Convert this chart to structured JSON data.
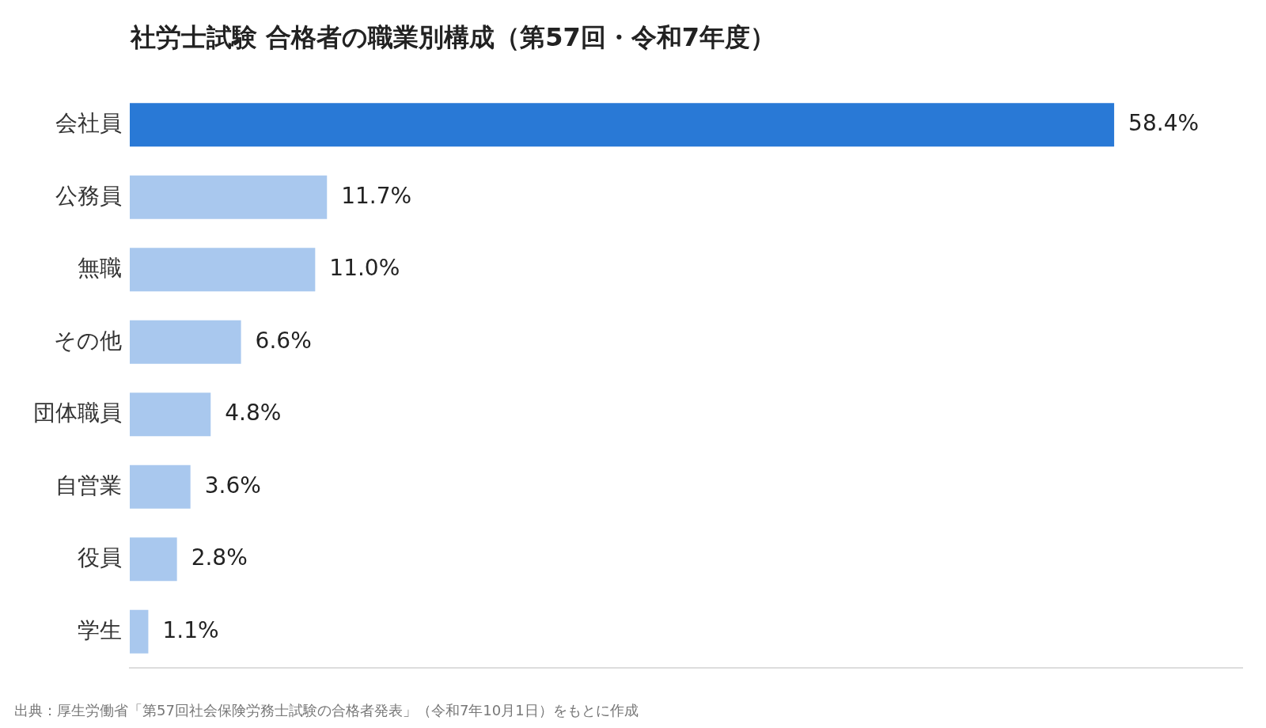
{
  "chart_data": {
    "type": "bar",
    "orientation": "horizontal",
    "title": "社労士試験 合格者の職業別構成（第57回・令和7年度）",
    "categories": [
      "会社員",
      "公務員",
      "無職",
      "その他",
      "団体職員",
      "自営業",
      "役員",
      "学生"
    ],
    "values": [
      58.4,
      11.7,
      11.0,
      6.6,
      4.8,
      3.6,
      2.8,
      1.1
    ],
    "value_labels": [
      "58.4%",
      "11.7%",
      "11.0%",
      "6.6%",
      "4.8%",
      "3.6%",
      "2.8%",
      "1.1%"
    ],
    "colors": [
      "#2979d6",
      "#a9c8ee",
      "#a9c8ee",
      "#a9c8ee",
      "#a9c8ee",
      "#a9c8ee",
      "#a9c8ee",
      "#a9c8ee"
    ],
    "xlim": [
      0,
      66
    ],
    "tick_labels": "y",
    "grid": false,
    "legend": false,
    "annotations": [
      "出典：厚生労働省「第57回社会保険労務士試験の合格者発表」（令和7年10月1日）をもとに作成"
    ]
  }
}
